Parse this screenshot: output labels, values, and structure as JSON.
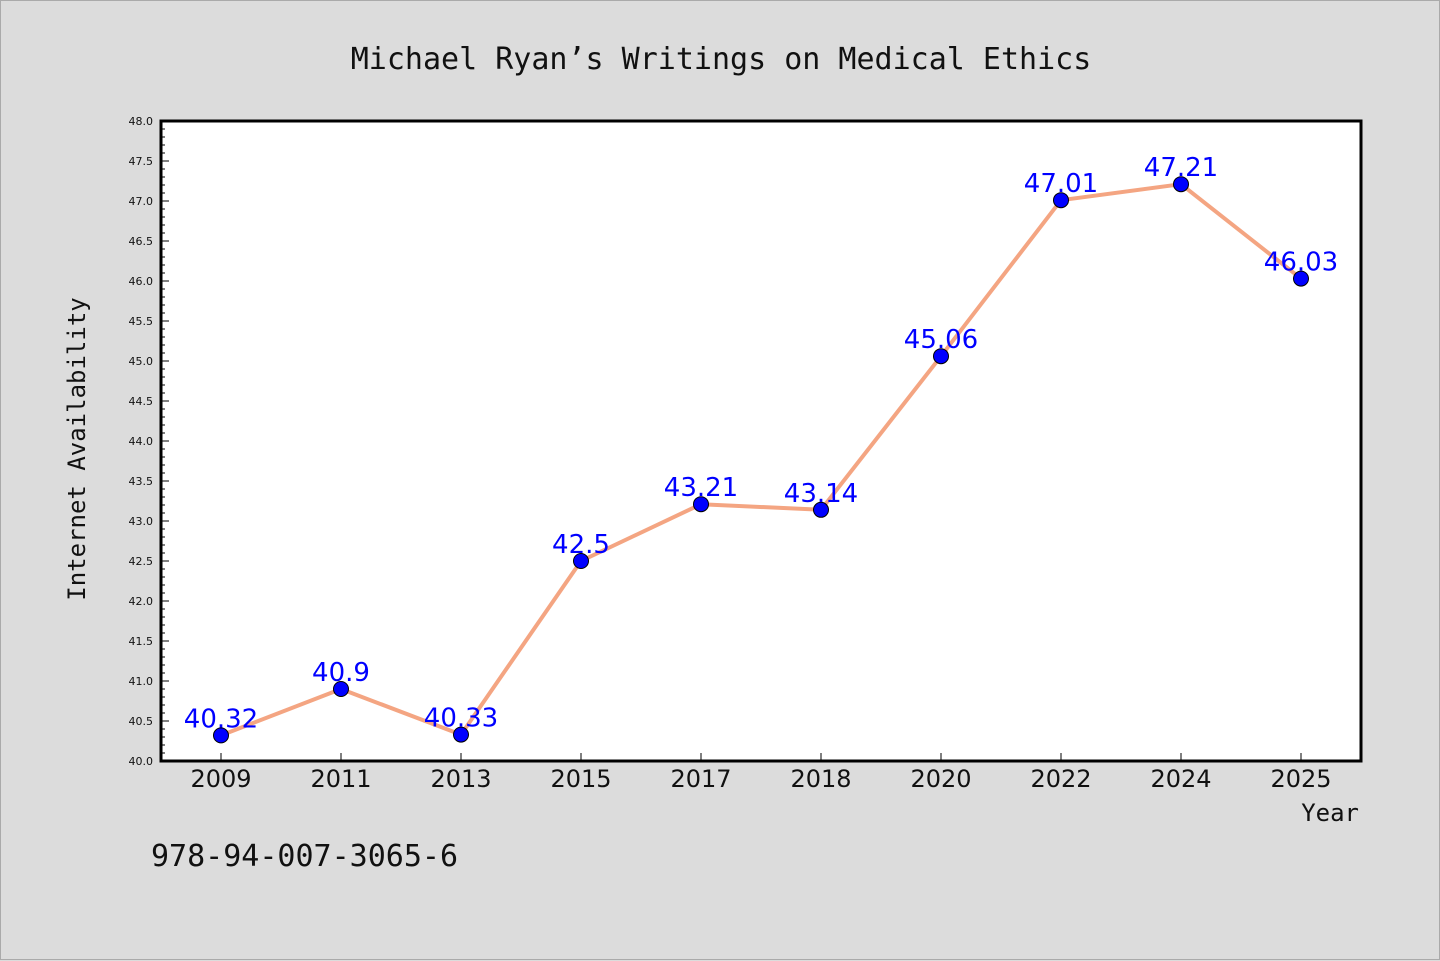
{
  "chart_data": {
    "type": "line",
    "title": "Michael Ryan’s Writings on Medical Ethics",
    "xlabel": "Year",
    "ylabel": "Internet Availability",
    "categories": [
      "2009",
      "2011",
      "2013",
      "2015",
      "2017",
      "2018",
      "2020",
      "2022",
      "2024",
      "2025"
    ],
    "series": [
      {
        "values": [
          40.32,
          40.9,
          40.33,
          42.5,
          43.21,
          43.14,
          45.06,
          47.01,
          47.21,
          46.03
        ],
        "labels": [
          "40.32",
          "40.9",
          "40.33",
          "42.5",
          "43.21",
          "43.14",
          "45.06",
          "47.01",
          "47.21",
          "46.03"
        ],
        "line_color": "#f4a582",
        "marker_color": "#0000ff",
        "label_color": "#0000ff"
      }
    ],
    "ylim": [
      40.0,
      48.0
    ],
    "yticks": [
      "40.0",
      "40.5",
      "41.0",
      "41.5",
      "42.0",
      "42.5",
      "43.0",
      "43.5",
      "44.0",
      "44.5",
      "45.0",
      "45.5",
      "46.0",
      "46.5",
      "47.0",
      "47.5",
      "48.0"
    ],
    "grid": false,
    "legend": "none"
  },
  "footer": {
    "isbn": "978-94-007-3065-6"
  }
}
